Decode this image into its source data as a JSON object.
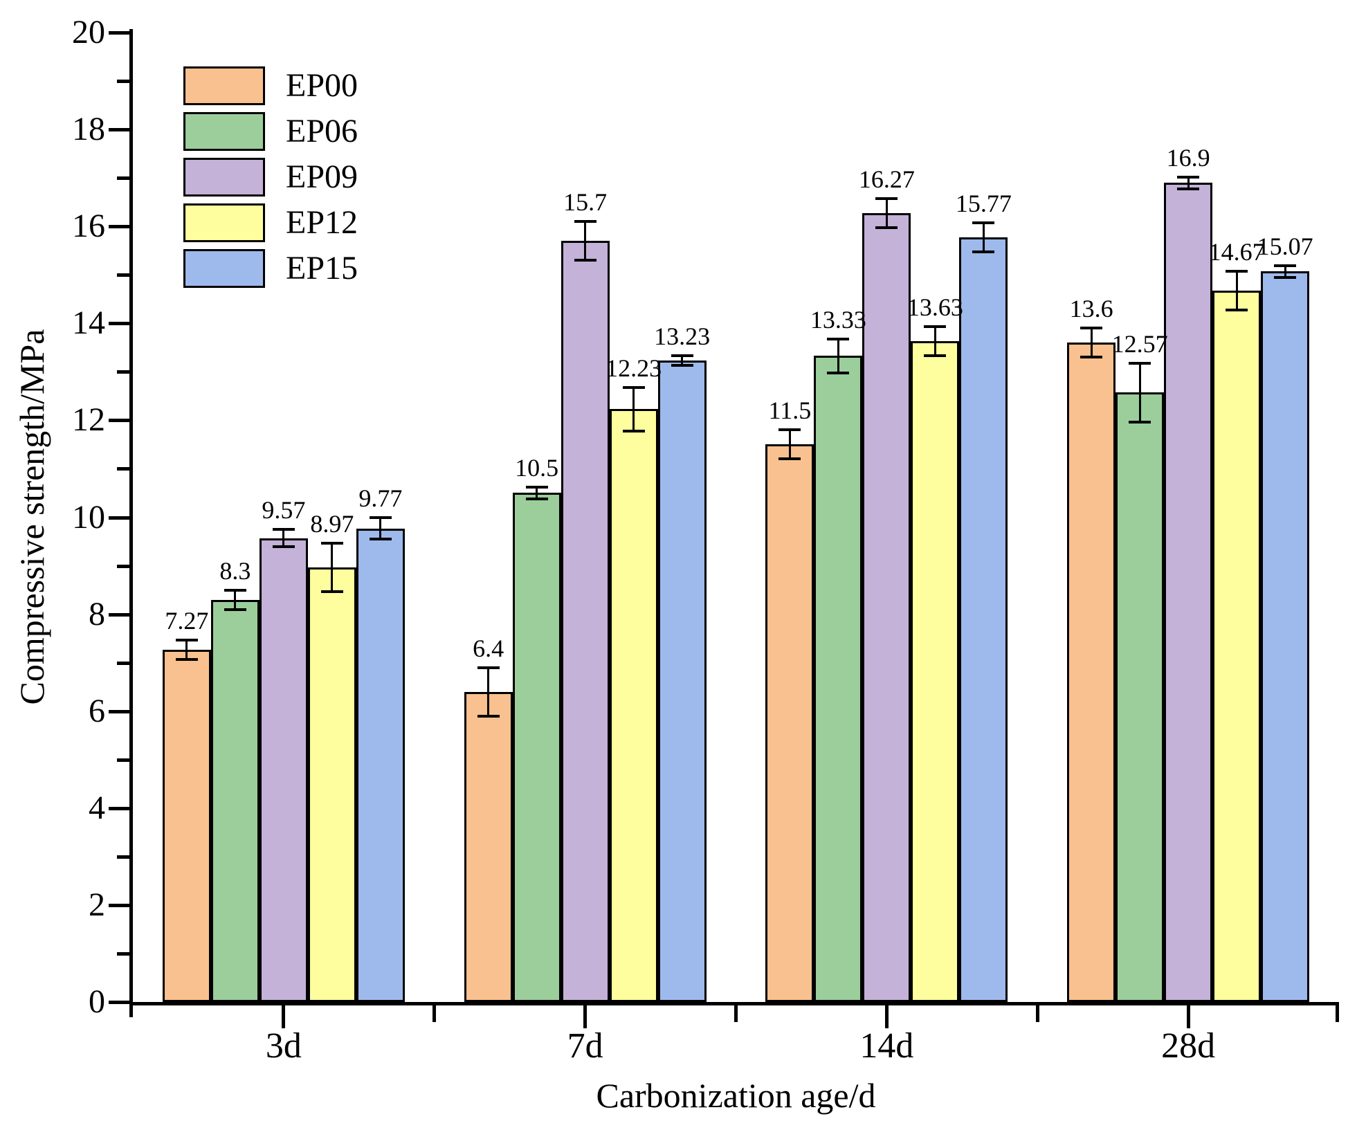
{
  "chart_data": {
    "type": "bar",
    "title": "",
    "xlabel": "Carbonization age/d",
    "ylabel": "Compressive strength/MPa",
    "categories": [
      "3d",
      "7d",
      "14d",
      "28d"
    ],
    "series": [
      {
        "name": "EP00",
        "color": "#F9C18F",
        "values": [
          7.27,
          6.4,
          11.5,
          13.6
        ],
        "labels": [
          "7.27",
          "6.4",
          "11.5",
          "13.6"
        ],
        "errors": [
          0.2,
          0.5,
          0.3,
          0.3
        ]
      },
      {
        "name": "EP06",
        "color": "#9BCE9B",
        "values": [
          8.3,
          10.5,
          13.33,
          12.57
        ],
        "labels": [
          "8.3",
          "10.5",
          "13.33",
          "12.57"
        ],
        "errors": [
          0.2,
          0.12,
          0.35,
          0.6
        ]
      },
      {
        "name": "EP09",
        "color": "#C4B2D8",
        "values": [
          9.57,
          15.7,
          16.27,
          16.9
        ],
        "labels": [
          "9.57",
          "15.7",
          "16.27",
          "16.9"
        ],
        "errors": [
          0.18,
          0.4,
          0.3,
          0.12
        ]
      },
      {
        "name": "EP12",
        "color": "#FEFE9F",
        "values": [
          8.97,
          12.23,
          13.63,
          14.67
        ],
        "labels": [
          "8.97",
          "12.23",
          "13.63",
          "14.67"
        ],
        "errors": [
          0.5,
          0.45,
          0.3,
          0.4
        ]
      },
      {
        "name": "EP15",
        "color": "#9EBAEC",
        "values": [
          9.77,
          13.23,
          15.77,
          15.07
        ],
        "labels": [
          "9.77",
          "13.23",
          "15.77",
          "15.07"
        ],
        "errors": [
          0.22,
          0.1,
          0.3,
          0.12
        ]
      }
    ],
    "ylim": [
      0,
      20
    ],
    "y_major_step": 2,
    "y_minor_step": 1,
    "error_bars": true,
    "grid": false,
    "legend_position": "top-left",
    "axis_color": "#000000",
    "text_color": "#000000"
  }
}
